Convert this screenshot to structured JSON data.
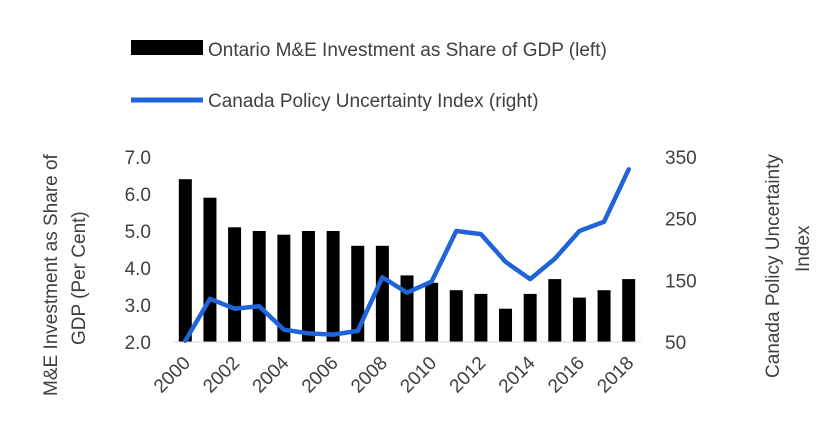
{
  "chart_data": {
    "type": "bar+line",
    "x": [
      2000,
      2001,
      2002,
      2003,
      2004,
      2005,
      2006,
      2007,
      2008,
      2009,
      2010,
      2011,
      2012,
      2013,
      2014,
      2015,
      2016,
      2017,
      2018
    ],
    "x_tick_labels": [
      "2000",
      "2002",
      "2004",
      "2006",
      "2008",
      "2010",
      "2012",
      "2014",
      "2016",
      "2018"
    ],
    "series": [
      {
        "name": "Ontario M&E Investment as Share of GDP (left)",
        "type": "bar",
        "axis": "left",
        "color": "#000000",
        "values": [
          6.4,
          5.9,
          5.1,
          5.0,
          4.9,
          5.0,
          5.0,
          4.6,
          4.6,
          3.8,
          3.6,
          3.4,
          3.3,
          2.9,
          3.3,
          3.7,
          3.2,
          3.4,
          3.7
        ]
      },
      {
        "name": "Canada Policy Uncertainty Index (right)",
        "type": "line",
        "axis": "right",
        "color": "#1f64d8",
        "values": [
          52,
          120,
          104,
          108,
          70,
          64,
          62,
          68,
          155,
          130,
          148,
          230,
          225,
          180,
          152,
          185,
          230,
          245,
          330
        ]
      }
    ],
    "y_left": {
      "label": "M&E Investment as Share of GDP (Per Cent)",
      "min": 2.0,
      "max": 7.0,
      "ticks": [
        "2.0",
        "3.0",
        "4.0",
        "5.0",
        "6.0",
        "7.0"
      ]
    },
    "y_right": {
      "label": "Canada Policy Uncertainty Index",
      "min": 50,
      "max": 350,
      "ticks": [
        "50",
        "150",
        "250",
        "350"
      ]
    },
    "grid": false,
    "legend_position": "top"
  }
}
